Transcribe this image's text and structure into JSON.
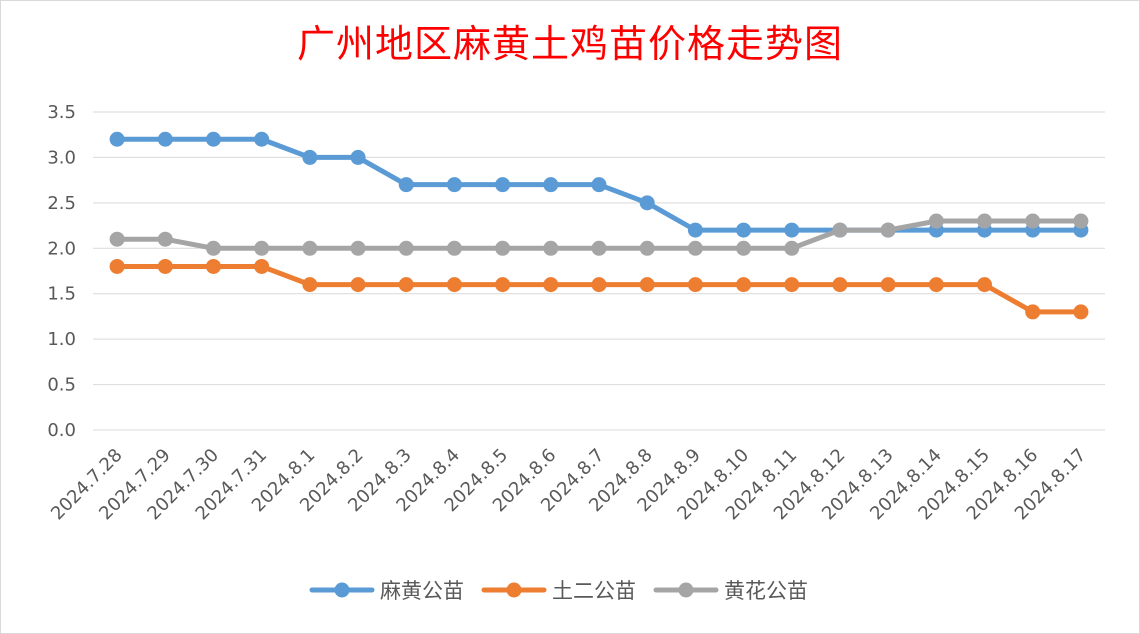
{
  "chart_data": {
    "type": "line",
    "title": "广州地区麻黄土鸡苗价格走势图",
    "xlabel": "",
    "ylabel": "",
    "ylim": [
      0,
      3.5
    ],
    "y_ticks": [
      "0.0",
      "0.5",
      "1.0",
      "1.5",
      "2.0",
      "2.5",
      "3.0",
      "3.5"
    ],
    "grid": true,
    "legend_position": "bottom",
    "categories": [
      "2024.7.28",
      "2024.7.29",
      "2024.7.30",
      "2024.7.31",
      "2024.8.1",
      "2024.8.2",
      "2024.8.3",
      "2024.8.4",
      "2024.8.5",
      "2024.8.6",
      "2024.8.7",
      "2024.8.8",
      "2024.8.9",
      "2024.8.10",
      "2024.8.11",
      "2024.8.12",
      "2024.8.13",
      "2024.8.14",
      "2024.8.15",
      "2024.8.16",
      "2024.8.17"
    ],
    "series": [
      {
        "name": "麻黄公苗",
        "color": "#5b9bd5",
        "values": [
          3.2,
          3.2,
          3.2,
          3.2,
          3.0,
          3.0,
          2.7,
          2.7,
          2.7,
          2.7,
          2.7,
          2.5,
          2.2,
          2.2,
          2.2,
          2.2,
          2.2,
          2.2,
          2.2,
          2.2,
          2.2
        ]
      },
      {
        "name": "土二公苗",
        "color": "#ed7d31",
        "values": [
          1.8,
          1.8,
          1.8,
          1.8,
          1.6,
          1.6,
          1.6,
          1.6,
          1.6,
          1.6,
          1.6,
          1.6,
          1.6,
          1.6,
          1.6,
          1.6,
          1.6,
          1.6,
          1.6,
          1.3,
          1.3
        ]
      },
      {
        "name": "黄花公苗",
        "color": "#a5a5a5",
        "values": [
          2.1,
          2.1,
          2.0,
          2.0,
          2.0,
          2.0,
          2.0,
          2.0,
          2.0,
          2.0,
          2.0,
          2.0,
          2.0,
          2.0,
          2.0,
          2.2,
          2.2,
          2.3,
          2.3,
          2.3,
          2.3
        ]
      }
    ]
  }
}
